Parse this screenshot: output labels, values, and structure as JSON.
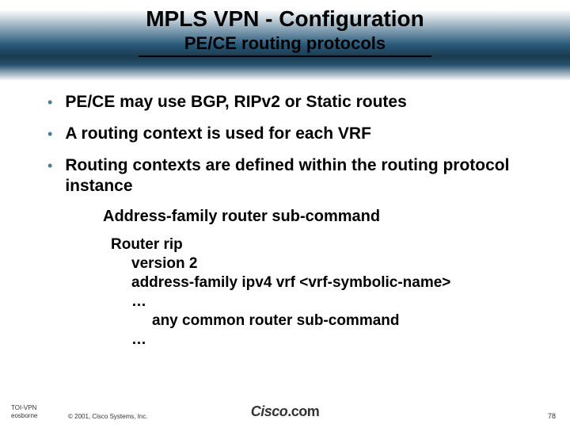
{
  "header": {
    "title": "MPLS VPN - Configuration",
    "subtitle": "PE/CE routing protocols",
    "title_color": "#000000",
    "band_colors": [
      "#ffffff",
      "#2a5a7a",
      "#1a3a4f"
    ]
  },
  "bullets": [
    "PE/CE may use BGP, RIPv2 or Static routes",
    "A routing context is used for each VRF",
    "Routing contexts are defined within the routing protocol instance"
  ],
  "sub_heading": "Address-family router sub-command",
  "code": {
    "l0": "Router rip",
    "l1": "version 2",
    "l2": "address-family ipv4 vrf <vrf-symbolic-name>",
    "l3": "…",
    "l4": "any common router sub-command",
    "l5": "…"
  },
  "footer": {
    "id1": "TOI-VPN",
    "id2": "eosborne",
    "copyright": "© 2001, Cisco Systems, Inc.",
    "logo": "Cisco.com",
    "page": "78"
  },
  "styling": {
    "bullet_marker_color": "#4a7a9a",
    "body_font_size": 21,
    "body_font_weight": 700,
    "background": "#ffffff"
  }
}
